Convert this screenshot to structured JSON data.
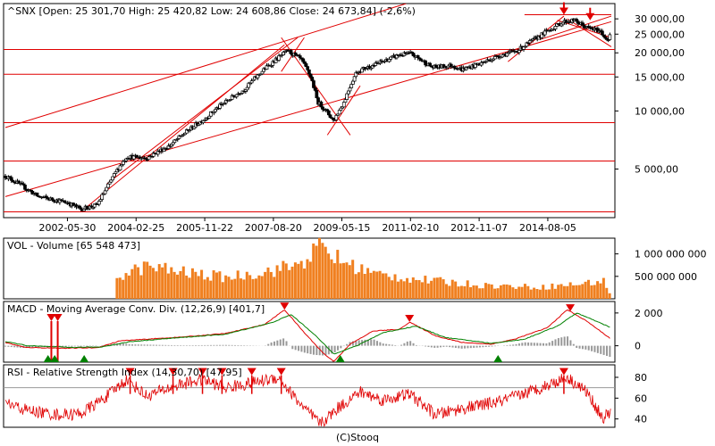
{
  "footer": "(C)Stooq",
  "colors": {
    "red": "#e00000",
    "green": "#008000",
    "orange": "#f08020",
    "gray": "#999999",
    "frame": "#000000"
  },
  "chart_data": [
    {
      "type": "candlestick",
      "title": "^SNX [Open: 25 301,70  High: 25 420,82  Low: 24 608,86  Close: 24 673,84] (-2,6%)",
      "scale": "log",
      "ylim": [
        2800,
        36000
      ],
      "xlim": [
        "2000-11-01",
        "2016-04-01"
      ],
      "yticks": [
        5000,
        10000,
        15000,
        20000,
        25000,
        30000
      ],
      "ytick_labels": [
        "5 000,00",
        "10 000,00",
        "15 000,00",
        "20 000,00",
        "25 000,00",
        "30 000,00"
      ],
      "xticks": [
        "2002-05-30",
        "2004-02-25",
        "2005-11-22",
        "2007-08-20",
        "2009-05-15",
        "2011-02-10",
        "2012-11-07",
        "2014-08-05"
      ],
      "key_points": [
        {
          "date": "2000-11-01",
          "value": 4600
        },
        {
          "date": "2001-02-01",
          "value": 4300
        },
        {
          "date": "2001-09-01",
          "value": 3600
        },
        {
          "date": "2002-05-30",
          "value": 3350
        },
        {
          "date": "2002-10-01",
          "value": 3100
        },
        {
          "date": "2003-03-01",
          "value": 3250
        },
        {
          "date": "2003-06-01",
          "value": 4000
        },
        {
          "date": "2003-12-01",
          "value": 5800
        },
        {
          "date": "2004-06-01",
          "value": 5700
        },
        {
          "date": "2005-01-01",
          "value": 6600
        },
        {
          "date": "2005-11-22",
          "value": 9100
        },
        {
          "date": "2006-05-01",
          "value": 10800
        },
        {
          "date": "2006-12-01",
          "value": 13000
        },
        {
          "date": "2007-06-01",
          "value": 16500
        },
        {
          "date": "2008-01-01",
          "value": 20500
        },
        {
          "date": "2008-05-01",
          "value": 18500
        },
        {
          "date": "2008-08-01",
          "value": 15000
        },
        {
          "date": "2008-10-01",
          "value": 11200
        },
        {
          "date": "2009-03-01",
          "value": 8900
        },
        {
          "date": "2009-06-01",
          "value": 11000
        },
        {
          "date": "2009-10-01",
          "value": 16000
        },
        {
          "date": "2010-04-01",
          "value": 17500
        },
        {
          "date": "2010-11-01",
          "value": 19500
        },
        {
          "date": "2011-02-10",
          "value": 19800
        },
        {
          "date": "2011-09-01",
          "value": 16800
        },
        {
          "date": "2012-03-01",
          "value": 17200
        },
        {
          "date": "2012-06-01",
          "value": 16400
        },
        {
          "date": "2012-11-07",
          "value": 17500
        },
        {
          "date": "2013-05-01",
          "value": 19200
        },
        {
          "date": "2013-11-01",
          "value": 20600
        },
        {
          "date": "2014-05-01",
          "value": 24000
        },
        {
          "date": "2014-08-05",
          "value": 26000
        },
        {
          "date": "2015-01-01",
          "value": 29000
        },
        {
          "date": "2015-04-01",
          "value": 29500
        },
        {
          "date": "2015-08-01",
          "value": 27000
        },
        {
          "date": "2015-12-01",
          "value": 26000
        },
        {
          "date": "2016-02-01",
          "value": 23500
        },
        {
          "date": "2016-03-15",
          "value": 24673
        }
      ],
      "horizontal_lines": [
        20800,
        15500,
        8700,
        5500,
        3000
      ],
      "resistance_segment": {
        "from": "2014-01-01",
        "to": "2016-03-15",
        "value": 31500
      },
      "trend_lines": [
        {
          "from": {
            "date": "2000-11-01",
            "value": 8200
          },
          "to": {
            "date": "2011-01-01",
            "value": 36000
          }
        },
        {
          "from": {
            "date": "2000-11-01",
            "value": 3600
          },
          "to": {
            "date": "2016-03-15",
            "value": 29000
          }
        },
        {
          "from": {
            "date": "2002-10-01",
            "value": 3000
          },
          "to": {
            "date": "2007-12-01",
            "value": 22000
          }
        },
        {
          "from": {
            "date": "2003-06-01",
            "value": 4200
          },
          "to": {
            "date": "2008-04-01",
            "value": 24000
          }
        },
        {
          "from": {
            "date": "2007-11-01",
            "value": 24000
          },
          "to": {
            "date": "2009-08-01",
            "value": 7500
          }
        },
        {
          "from": {
            "date": "2007-11-01",
            "value": 16000
          },
          "to": {
            "date": "2008-06-01",
            "value": 24000
          }
        },
        {
          "from": {
            "date": "2009-01-01",
            "value": 7500
          },
          "to": {
            "date": "2009-11-01",
            "value": 13500
          }
        },
        {
          "from": {
            "date": "2013-08-01",
            "value": 18000
          },
          "to": {
            "date": "2015-01-01",
            "value": 31000
          }
        },
        {
          "from": {
            "date": "2014-06-01",
            "value": 23500
          },
          "to": {
            "date": "2016-03-15",
            "value": 31000
          }
        },
        {
          "from": {
            "date": "2015-02-01",
            "value": 30000
          },
          "to": {
            "date": "2016-03-15",
            "value": 21500
          }
        },
        {
          "from": {
            "date": "2014-11-01",
            "value": 29500
          },
          "to": {
            "date": "2016-03-15",
            "value": 24000
          }
        }
      ],
      "markers": [
        {
          "date": "2015-01-01",
          "value": 31500,
          "dir": "down"
        },
        {
          "date": "2015-09-01",
          "value": 29500,
          "dir": "down"
        }
      ]
    },
    {
      "type": "bar",
      "title": "VOL - Volume [65 548 473]",
      "ylim": [
        0,
        1350000000
      ],
      "yticks": [
        500000000,
        1000000000
      ],
      "ytick_labels": [
        "500 000 000",
        "1 000 000 000"
      ],
      "start": "2003-09-01",
      "key_points": [
        {
          "date": "2003-09-01",
          "value": 500000000
        },
        {
          "date": "2004-06-01",
          "value": 720000000
        },
        {
          "date": "2005-06-01",
          "value": 580000000
        },
        {
          "date": "2006-06-01",
          "value": 480000000
        },
        {
          "date": "2007-06-01",
          "value": 600000000
        },
        {
          "date": "2008-04-01",
          "value": 760000000
        },
        {
          "date": "2008-11-01",
          "value": 1150000000
        },
        {
          "date": "2009-05-01",
          "value": 850000000
        },
        {
          "date": "2010-03-01",
          "value": 560000000
        },
        {
          "date": "2011-06-01",
          "value": 420000000
        },
        {
          "date": "2013-01-01",
          "value": 300000000
        },
        {
          "date": "2014-06-01",
          "value": 260000000
        },
        {
          "date": "2015-06-01",
          "value": 330000000
        },
        {
          "date": "2016-01-01",
          "value": 400000000
        },
        {
          "date": "2016-03-15",
          "value": 65548473
        }
      ]
    },
    {
      "type": "line",
      "title": "MACD - Moving Average Conv. Div. (12,26,9) [401,7]",
      "ylim": [
        -1000,
        2700
      ],
      "yticks": [
        0,
        2000
      ],
      "ytick_labels": [
        "0",
        "2 000"
      ],
      "series": [
        {
          "color": "red",
          "key_points": [
            {
              "date": "2000-11-01",
              "value": 200
            },
            {
              "date": "2001-05-01",
              "value": -100
            },
            {
              "date": "2002-05-01",
              "value": -150
            },
            {
              "date": "2003-03-01",
              "value": -120
            },
            {
              "date": "2003-10-01",
              "value": 300
            },
            {
              "date": "2004-06-01",
              "value": 400
            },
            {
              "date": "2005-06-01",
              "value": 550
            },
            {
              "date": "2006-06-01",
              "value": 750
            },
            {
              "date": "2007-06-01",
              "value": 1300
            },
            {
              "date": "2007-12-01",
              "value": 2200
            },
            {
              "date": "2008-06-01",
              "value": 800
            },
            {
              "date": "2008-12-01",
              "value": -500
            },
            {
              "date": "2009-03-01",
              "value": -950
            },
            {
              "date": "2009-08-01",
              "value": 100
            },
            {
              "date": "2010-03-01",
              "value": 900
            },
            {
              "date": "2010-11-01",
              "value": 1000
            },
            {
              "date": "2011-02-01",
              "value": 1450
            },
            {
              "date": "2011-10-01",
              "value": 600
            },
            {
              "date": "2012-06-01",
              "value": 200
            },
            {
              "date": "2013-03-01",
              "value": 100
            },
            {
              "date": "2013-10-01",
              "value": 400
            },
            {
              "date": "2014-08-01",
              "value": 1100
            },
            {
              "date": "2015-02-01",
              "value": 2200
            },
            {
              "date": "2015-08-01",
              "value": 1500
            },
            {
              "date": "2016-03-15",
              "value": 400
            }
          ]
        },
        {
          "color": "green",
          "key_points": [
            {
              "date": "2000-11-01",
              "value": 250
            },
            {
              "date": "2001-06-01",
              "value": 0
            },
            {
              "date": "2002-06-01",
              "value": -100
            },
            {
              "date": "2003-04-01",
              "value": -80
            },
            {
              "date": "2004-01-01",
              "value": 250
            },
            {
              "date": "2005-01-01",
              "value": 450
            },
            {
              "date": "2006-06-01",
              "value": 700
            },
            {
              "date": "2007-08-01",
              "value": 1400
            },
            {
              "date": "2008-02-01",
              "value": 1900
            },
            {
              "date": "2008-09-01",
              "value": 700
            },
            {
              "date": "2009-03-01",
              "value": -500
            },
            {
              "date": "2009-10-01",
              "value": 0
            },
            {
              "date": "2010-06-01",
              "value": 800
            },
            {
              "date": "2011-04-01",
              "value": 1200
            },
            {
              "date": "2012-01-01",
              "value": 500
            },
            {
              "date": "2013-03-01",
              "value": 150
            },
            {
              "date": "2014-01-01",
              "value": 400
            },
            {
              "date": "2014-11-01",
              "value": 1200
            },
            {
              "date": "2015-05-01",
              "value": 2000
            },
            {
              "date": "2016-03-15",
              "value": 1100
            }
          ]
        }
      ],
      "markers": [
        {
          "date": "2002-01-01",
          "dir": "down",
          "color": "red"
        },
        {
          "date": "2002-03-01",
          "dir": "down",
          "color": "red"
        },
        {
          "date": "2001-12-01",
          "dir": "up",
          "color": "green"
        },
        {
          "date": "2002-02-01",
          "dir": "up",
          "color": "green"
        },
        {
          "date": "2002-11-01",
          "dir": "up",
          "color": "green"
        },
        {
          "date": "2007-12-01",
          "dir": "down",
          "color": "red"
        },
        {
          "date": "2009-05-01",
          "dir": "up",
          "color": "green"
        },
        {
          "date": "2011-02-01",
          "dir": "down",
          "color": "red"
        },
        {
          "date": "2013-05-01",
          "dir": "up",
          "color": "green"
        },
        {
          "date": "2015-03-01",
          "dir": "down",
          "color": "red"
        }
      ]
    },
    {
      "type": "line",
      "title": "RSI - Relative Strength Index (14,30,70) [47,95]",
      "ylim": [
        32,
        92
      ],
      "yticks": [
        40,
        60,
        80
      ],
      "ytick_labels": [
        "40",
        "60",
        "80"
      ],
      "reference_lines": [
        70,
        30
      ],
      "series": [
        {
          "color": "red",
          "key_points": [
            {
              "date": "2000-11-01",
              "value": 55
            },
            {
              "date": "2001-06-01",
              "value": 48
            },
            {
              "date": "2002-03-01",
              "value": 44
            },
            {
              "date": "2002-10-01",
              "value": 45
            },
            {
              "date": "2003-06-01",
              "value": 62
            },
            {
              "date": "2003-12-01",
              "value": 78
            },
            {
              "date": "2004-06-01",
              "value": 62
            },
            {
              "date": "2005-03-01",
              "value": 72
            },
            {
              "date": "2005-11-01",
              "value": 78
            },
            {
              "date": "2006-06-01",
              "value": 70
            },
            {
              "date": "2007-03-01",
              "value": 75
            },
            {
              "date": "2007-10-01",
              "value": 80
            },
            {
              "date": "2008-06-01",
              "value": 50
            },
            {
              "date": "2008-11-01",
              "value": 35
            },
            {
              "date": "2009-04-01",
              "value": 50
            },
            {
              "date": "2009-11-01",
              "value": 66
            },
            {
              "date": "2010-06-01",
              "value": 58
            },
            {
              "date": "2011-02-01",
              "value": 64
            },
            {
              "date": "2011-10-01",
              "value": 44
            },
            {
              "date": "2012-06-01",
              "value": 50
            },
            {
              "date": "2013-06-01",
              "value": 57
            },
            {
              "date": "2014-06-01",
              "value": 70
            },
            {
              "date": "2015-02-01",
              "value": 80
            },
            {
              "date": "2015-08-01",
              "value": 66
            },
            {
              "date": "2016-01-01",
              "value": 40
            },
            {
              "date": "2016-03-15",
              "value": 48
            }
          ]
        }
      ],
      "markers": [
        {
          "date": "2004-01-01",
          "dir": "down",
          "color": "red"
        },
        {
          "date": "2005-02-01",
          "dir": "down",
          "color": "red"
        },
        {
          "date": "2005-11-01",
          "dir": "down",
          "color": "red"
        },
        {
          "date": "2006-05-01",
          "dir": "down",
          "color": "red"
        },
        {
          "date": "2007-02-01",
          "dir": "down",
          "color": "red"
        },
        {
          "date": "2007-11-01",
          "dir": "down",
          "color": "red"
        },
        {
          "date": "2015-01-01",
          "dir": "down",
          "color": "red"
        }
      ]
    }
  ]
}
